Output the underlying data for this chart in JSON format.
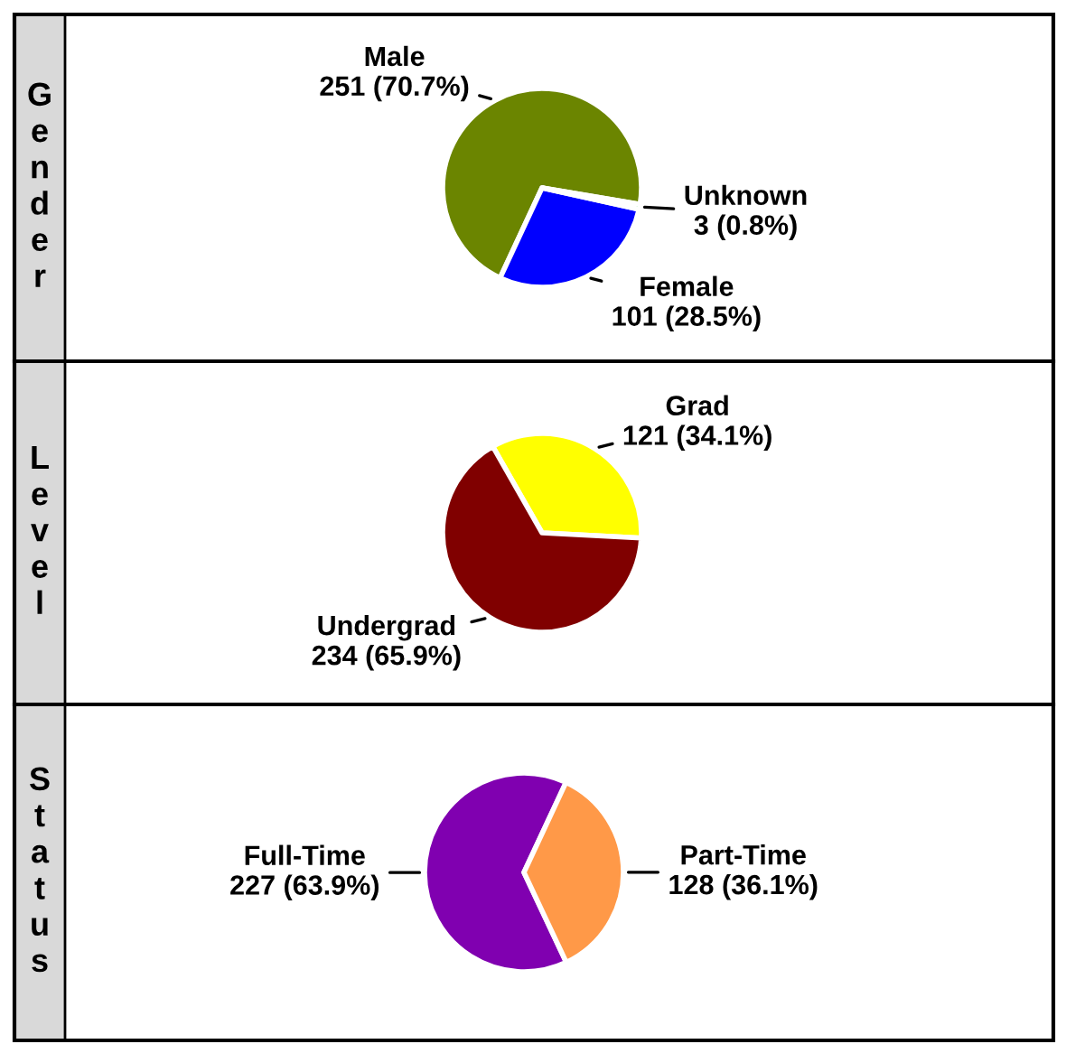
{
  "chart_data": [
    {
      "type": "pie",
      "title": "Gender",
      "categories": [
        "Male",
        "Female",
        "Unknown"
      ],
      "values": [
        251,
        101,
        3
      ],
      "colors": [
        "#6b8500",
        "#0000ff",
        "#33cc33"
      ],
      "value_labels": [
        "251 (70.7%)",
        "101 (28.5%)",
        "3 (0.8%)"
      ]
    },
    {
      "type": "pie",
      "title": "Level",
      "categories": [
        "Grad",
        "Undergrad"
      ],
      "values": [
        121,
        234
      ],
      "colors": [
        "#ffff00",
        "#800000"
      ],
      "value_labels": [
        "121 (34.1%)",
        "234 (65.9%)"
      ]
    },
    {
      "type": "pie",
      "title": "Status",
      "categories": [
        "Full-Time",
        "Part-Time"
      ],
      "values": [
        227,
        128
      ],
      "colors": [
        "#8000b0",
        "#ff9948"
      ],
      "value_labels": [
        "227 (63.9%)",
        "128 (36.1%)"
      ]
    }
  ]
}
